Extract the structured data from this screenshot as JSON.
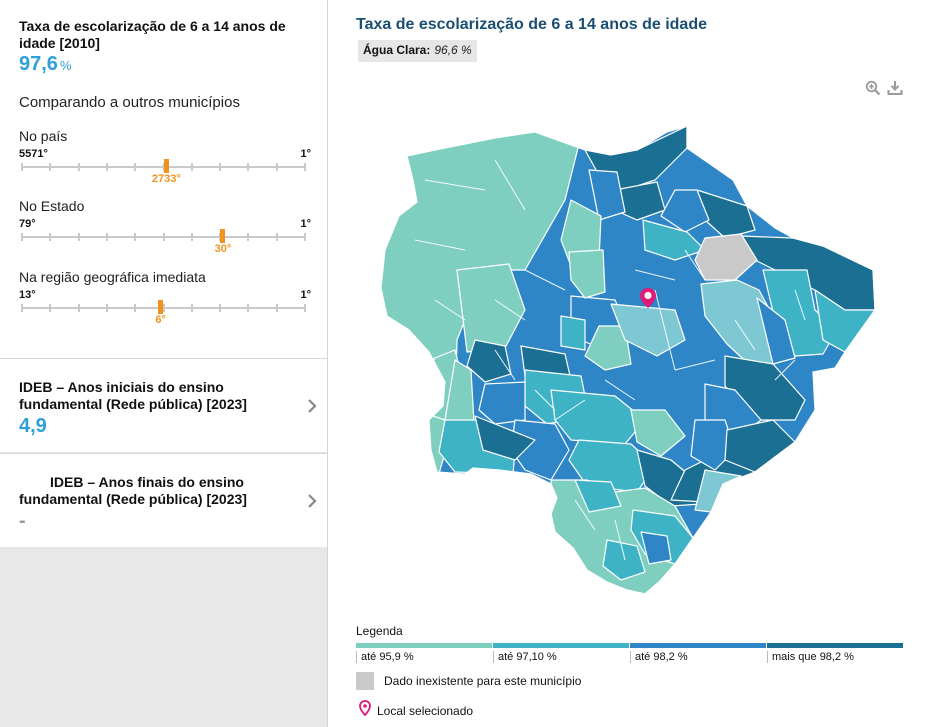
{
  "indicator": {
    "title": "Taxa de escolarização de 6 a 14 anos de idade [2010]",
    "value": "97,6",
    "unit": "%"
  },
  "comparison": {
    "title": "Comparando a outros municípios",
    "ranks": [
      {
        "label": "No país",
        "low": "5571°",
        "high": "1°",
        "value": "2733°",
        "position": 0.51
      },
      {
        "label": "No Estado",
        "low": "79°",
        "high": "1°",
        "value": "30°",
        "position": 0.71
      },
      {
        "label": "Na região geográfica imediata",
        "low": "13°",
        "high": "1°",
        "value": "6°",
        "position": 0.49
      }
    ]
  },
  "cards": [
    {
      "title": "IDEB – Anos iniciais do ensino fundamental (Rede pública) [2023]",
      "value": "4,9"
    },
    {
      "title": "IDEB – Anos finais do ensino fundamental (Rede pública) [2023]",
      "value": "-"
    }
  ],
  "map": {
    "title": "Taxa de escolarização de 6 a 14 anos de idade",
    "place": "Água Clara:",
    "place_value": "96,6 %",
    "tools": [
      "zoom-in-icon",
      "download-icon"
    ]
  },
  "legend": {
    "title": "Legenda",
    "items": [
      {
        "label": "até 95,9 %",
        "color": "#7fcfc0"
      },
      {
        "label": "até 97,10 %",
        "color": "#3fb3c6"
      },
      {
        "label": "até 98,2 %",
        "color": "#2e86c6"
      },
      {
        "label": "mais que 98,2 %",
        "color": "#1b6f93"
      }
    ],
    "nodata": {
      "label": "Dado inexistente para este município",
      "color": "#c9c9c9"
    },
    "selected": {
      "label": "Local selecionado",
      "color": "#e0197a"
    }
  }
}
